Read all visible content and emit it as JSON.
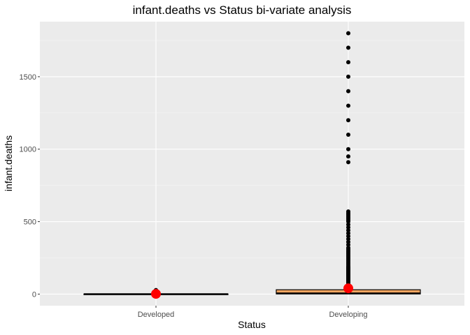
{
  "chart_data": {
    "type": "box",
    "title": "infant.deaths vs Status bi-variate analysis",
    "xlabel": "Status",
    "ylabel": "infant.deaths",
    "categories": [
      "Developed",
      "Developing"
    ],
    "ylim": [
      -80,
      1880
    ],
    "yticks": [
      0,
      500,
      1000,
      1500
    ],
    "grid": true,
    "legend": "none",
    "colors": {
      "panel": "#ebebeb",
      "grid_major": "#ffffff",
      "box_fill_developed": "#f8b380",
      "box_fill_developing": "#f4a460",
      "outline": "#000000",
      "mean_point": "#ff0000",
      "outlier": "#000000"
    },
    "boxes": [
      {
        "category": "Developed",
        "q1": 0,
        "median": 0,
        "q3": 1,
        "whisker_low": 0,
        "whisker_high": 2,
        "mean": 1.5,
        "outliers": [
          5,
          8,
          10,
          12,
          15,
          18,
          20,
          22,
          25,
          28
        ]
      },
      {
        "category": "Developing",
        "q1": 1,
        "median": 5,
        "q3": 30,
        "whisker_low": 0,
        "whisker_high": 70,
        "mean": 40,
        "outliers": [
          75,
          80,
          85,
          90,
          95,
          100,
          105,
          110,
          115,
          120,
          125,
          130,
          135,
          140,
          145,
          150,
          155,
          160,
          165,
          170,
          175,
          180,
          185,
          190,
          200,
          210,
          220,
          230,
          240,
          250,
          260,
          270,
          280,
          290,
          300,
          310,
          320,
          340,
          360,
          380,
          400,
          420,
          440,
          460,
          480,
          500,
          510,
          520,
          530,
          540,
          550,
          560,
          570,
          910,
          950,
          1000,
          1100,
          1200,
          1300,
          1400,
          1500,
          1600,
          1700,
          1800
        ]
      }
    ]
  }
}
